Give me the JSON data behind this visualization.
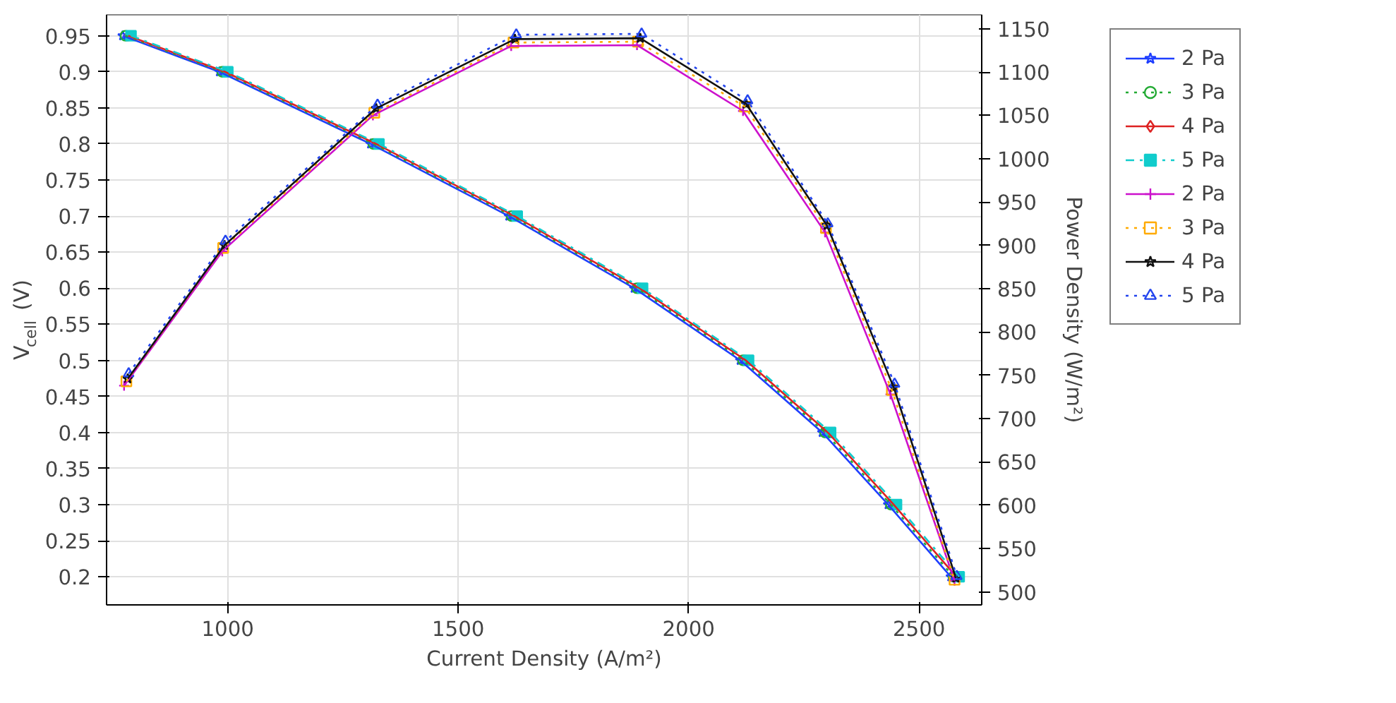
{
  "chart_data": {
    "type": "line",
    "xlabel": "Current Density (A/m²)",
    "ylabel": "V$_{cell}$ (V)",
    "y2label": "Power Density (W/m²)",
    "xlim": [
      737,
      2636
    ],
    "xticks": [
      1000,
      1500,
      2000,
      2500
    ],
    "ylim": [
      0.161,
      0.979
    ],
    "yticks": [
      0.2,
      0.25,
      0.3,
      0.35,
      0.4,
      0.45,
      0.5,
      0.55,
      0.6,
      0.65,
      0.7,
      0.75,
      0.8,
      0.85,
      0.9,
      0.95
    ],
    "y2lim": [
      485,
      1166
    ],
    "y2ticks": [
      500,
      550,
      600,
      650,
      700,
      750,
      800,
      850,
      900,
      950,
      1000,
      1050,
      1100,
      1150
    ],
    "grid": true,
    "legend": "right",
    "series": [
      {
        "name": "2 Pa",
        "color": "#1f3fff",
        "marker": "star",
        "line_style": "solid",
        "x": [
          772,
          982,
          1310,
          1610,
          1882,
          2112,
          2290,
          2433,
          2569
        ],
        "values": [
          0.95,
          0.9,
          0.8,
          0.7,
          0.6,
          0.5,
          0.4,
          0.3,
          0.2
        ]
      },
      {
        "name": "3 Pa",
        "color": "#22aa33",
        "marker": "circle",
        "line_style": "dotted",
        "x": [
          778,
          988,
          1316,
          1616,
          1888,
          2118,
          2296,
          2439,
          2575
        ],
        "values": [
          0.95,
          0.9,
          0.8,
          0.7,
          0.6,
          0.5,
          0.4,
          0.3,
          0.2
        ]
      },
      {
        "name": "4 Pa",
        "color": "#dd2222",
        "marker": "diamond",
        "line_style": "solid",
        "x": [
          784,
          994,
          1322,
          1622,
          1894,
          2124,
          2302,
          2445,
          2581
        ],
        "values": [
          0.95,
          0.9,
          0.8,
          0.7,
          0.6,
          0.5,
          0.4,
          0.3,
          0.2
        ]
      },
      {
        "name": "5 Pa",
        "color": "#11cccc",
        "marker": "square",
        "line_style": "dashed",
        "x": [
          790,
          1000,
          1328,
          1628,
          1900,
          2130,
          2308,
          2451,
          2587
        ],
        "values": [
          0.95,
          0.9,
          0.8,
          0.7,
          0.6,
          0.5,
          0.4,
          0.3,
          0.2
        ]
      },
      {
        "name": "2 Pa",
        "color": "#cc11cc",
        "marker": "cross",
        "line_style": "solid",
        "axis": "y2",
        "x": [
          775,
          988,
          1315,
          1615,
          1888,
          2118,
          2296,
          2438,
          2577
        ],
        "values": [
          738,
          893,
          1050,
          1130,
          1131,
          1055,
          915,
          728,
          513
        ]
      },
      {
        "name": "3 Pa",
        "color": "#ffaa00",
        "marker": "square",
        "line_style": "dotted",
        "axis": "y2",
        "x": [
          780,
          990,
          1318,
          1620,
          1890,
          2122,
          2298,
          2441,
          2577
        ],
        "values": [
          743,
          897,
          1053,
          1134,
          1135,
          1060,
          920,
          733,
          514
        ]
      },
      {
        "name": "4 Pa",
        "color": "#111111",
        "marker": "star",
        "line_style": "solid",
        "axis": "y2",
        "x": [
          783,
          993,
          1322,
          1623,
          1895,
          2125,
          2300,
          2445,
          2580
        ],
        "values": [
          746,
          900,
          1058,
          1138,
          1139,
          1063,
          923,
          736,
          516
        ]
      },
      {
        "name": "5 Pa",
        "color": "#2244ee",
        "marker": "triangle",
        "line_style": "dotted",
        "axis": "y2",
        "x": [
          785,
          995,
          1325,
          1626,
          1898,
          2128,
          2302,
          2447,
          2582
        ],
        "values": [
          752,
          905,
          1062,
          1143,
          1144,
          1067,
          925,
          740,
          518
        ]
      }
    ]
  }
}
